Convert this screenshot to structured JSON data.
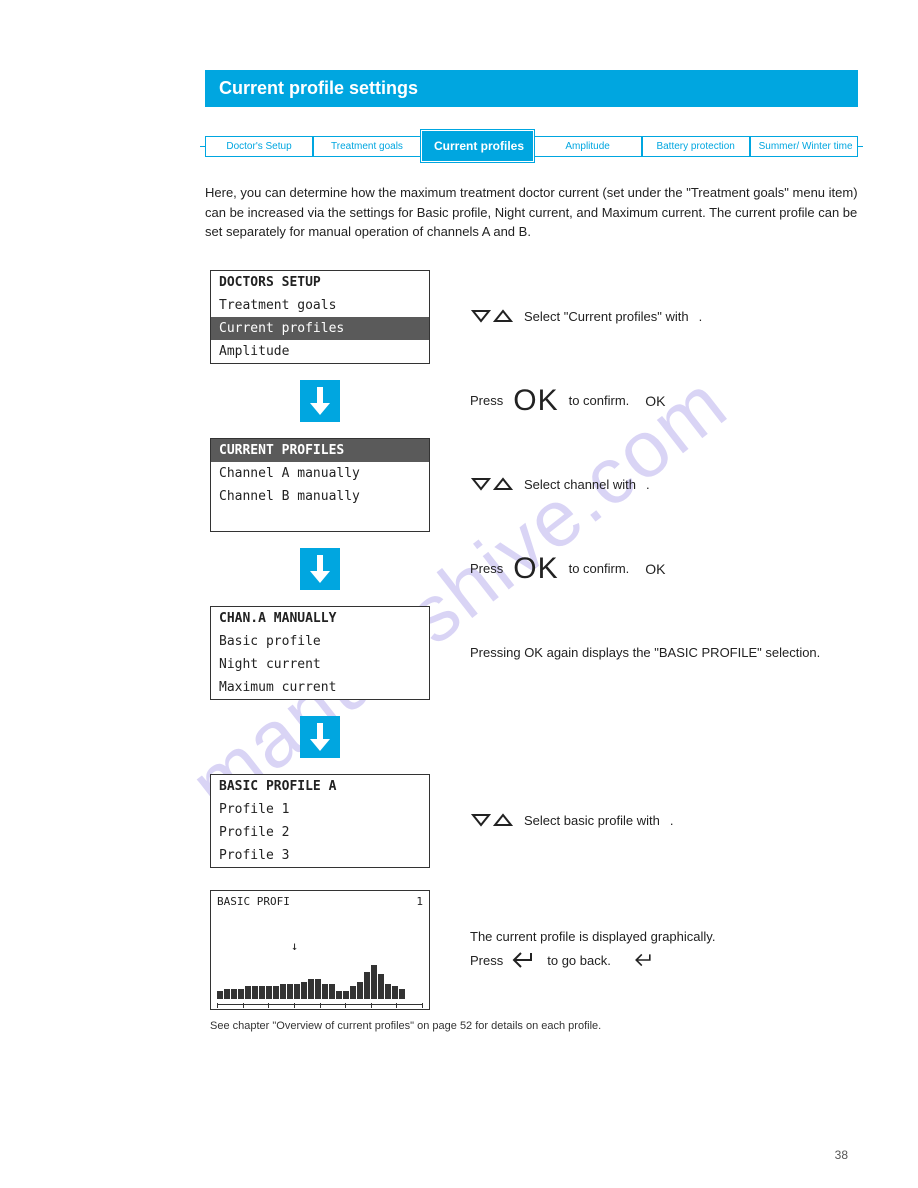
{
  "page": {
    "title": "Current profile settings",
    "number": "38",
    "footer": "See chapter \"Overview of current profiles\" on page 52 for details on each profile."
  },
  "breadcrumb": {
    "items": [
      {
        "label": "Doctor's Setup",
        "active": false
      },
      {
        "label": "Treatment goals",
        "active": false
      },
      {
        "label": "Current profiles",
        "active": true
      },
      {
        "label": "Amplitude",
        "active": false
      },
      {
        "label": "Battery protection",
        "active": false
      },
      {
        "label": "Summer/\nWinter time",
        "active": false
      }
    ]
  },
  "intro": "Here, you can determine how the maximum treatment doctor current (set under the \"Treatment goals\" menu item) can be increased via the settings for Basic profile, Night current, and Maximum current. The current profile can be set separately for manual operation of channels A and B.",
  "screens": {
    "s1": {
      "l1": "DOCTORS SETUP",
      "l2": "Treatment goals",
      "l3": "Current profiles",
      "l4": "Amplitude"
    },
    "s2": {
      "l1": "CURRENT PROFILES",
      "l2": "Channel A manually",
      "l3": "Channel B manually"
    },
    "s3": {
      "l1": "CHAN.A MANUALLY",
      "l2": "Basic profile",
      "l3": "Night current",
      "l4": "Maximum current"
    },
    "s4": {
      "l1": "BASIC PROFILE A",
      "l2": "Profile 1",
      "l3": "Profile 2",
      "l4": "Profile 3"
    },
    "s5": {
      "title": "BASIC PROFI",
      "sel": "1",
      "bars": [
        3,
        4,
        4,
        4,
        5,
        5,
        5,
        5,
        5,
        6,
        6,
        6,
        7,
        8,
        8,
        6,
        6,
        3,
        3,
        5,
        7,
        11,
        14,
        10,
        6,
        5,
        4
      ],
      "ticks": 9
    }
  },
  "side": {
    "s1": "Select \"Current profiles\" with",
    "a1a": "Press",
    "a1b": "to confirm.",
    "s2": "Select channel with",
    "a2a": "Press",
    "a2b": "to confirm.",
    "a3": "Pressing OK again displays the \"BASIC PROFILE\" selection.",
    "s4": "Select basic profile with",
    "s5a": "The current profile is displayed graphically.",
    "s5b": "Press",
    "s5c": "to go back."
  },
  "ok_label": "OK",
  "colors": {
    "accent": "#00a6e0",
    "hl": "#5a5a5a"
  }
}
